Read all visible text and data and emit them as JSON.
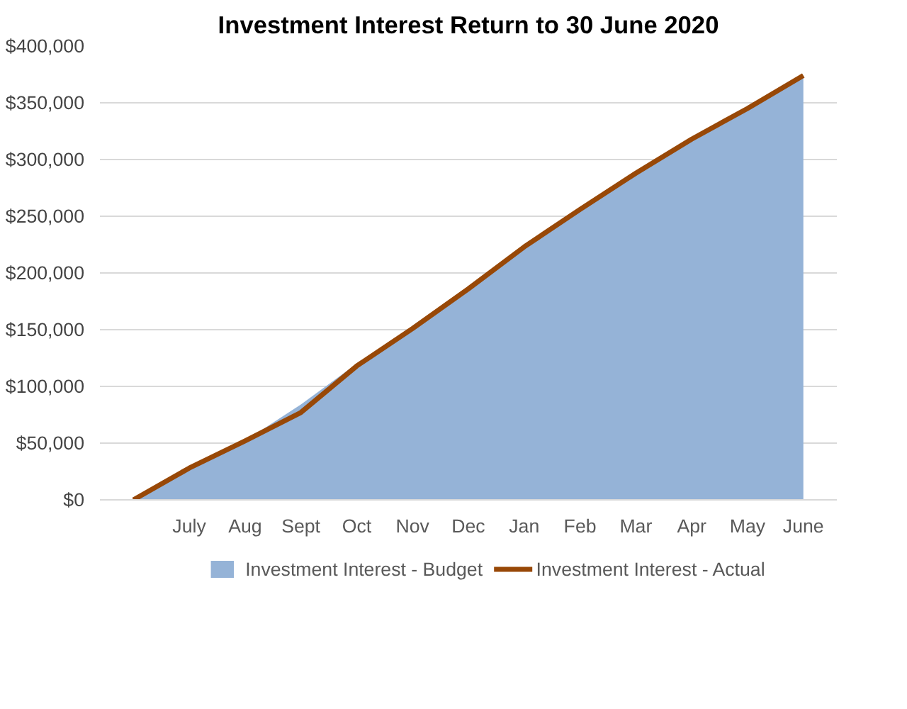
{
  "chart_data": {
    "type": "area",
    "title": "Investment Interest Return to 30 June 2020",
    "categories": [
      null,
      "July",
      "Aug",
      "Sept",
      "Oct",
      "Nov",
      "Dec",
      "Jan",
      "Feb",
      "Mar",
      "Apr",
      "May",
      "June"
    ],
    "series": [
      {
        "name": "Investment Interest - Budget",
        "type": "area",
        "color": "#95b3d7",
        "values": [
          0,
          27000,
          52000,
          84000,
          120000,
          152000,
          186000,
          222000,
          255000,
          287000,
          317000,
          345000,
          372000
        ]
      },
      {
        "name": "Investment Interest - Actual",
        "type": "line",
        "color": "#984807",
        "values": [
          0,
          28000,
          52000,
          77000,
          118000,
          151000,
          186000,
          223000,
          256000,
          288000,
          318000,
          345000,
          374000
        ]
      }
    ],
    "ylim": [
      0,
      400000
    ],
    "yticks": [
      {
        "value": 0,
        "label": "$0"
      },
      {
        "value": 50000,
        "label": "$50,000"
      },
      {
        "value": 100000,
        "label": "$100,000"
      },
      {
        "value": 150000,
        "label": "$150,000"
      },
      {
        "value": 200000,
        "label": "$200,000"
      },
      {
        "value": 250000,
        "label": "$250,000"
      },
      {
        "value": 300000,
        "label": "$300,000"
      },
      {
        "value": 350000,
        "label": "$350,000"
      },
      {
        "value": 400000,
        "label": "$400,000"
      }
    ],
    "grid": "y",
    "legend": "bottom"
  }
}
